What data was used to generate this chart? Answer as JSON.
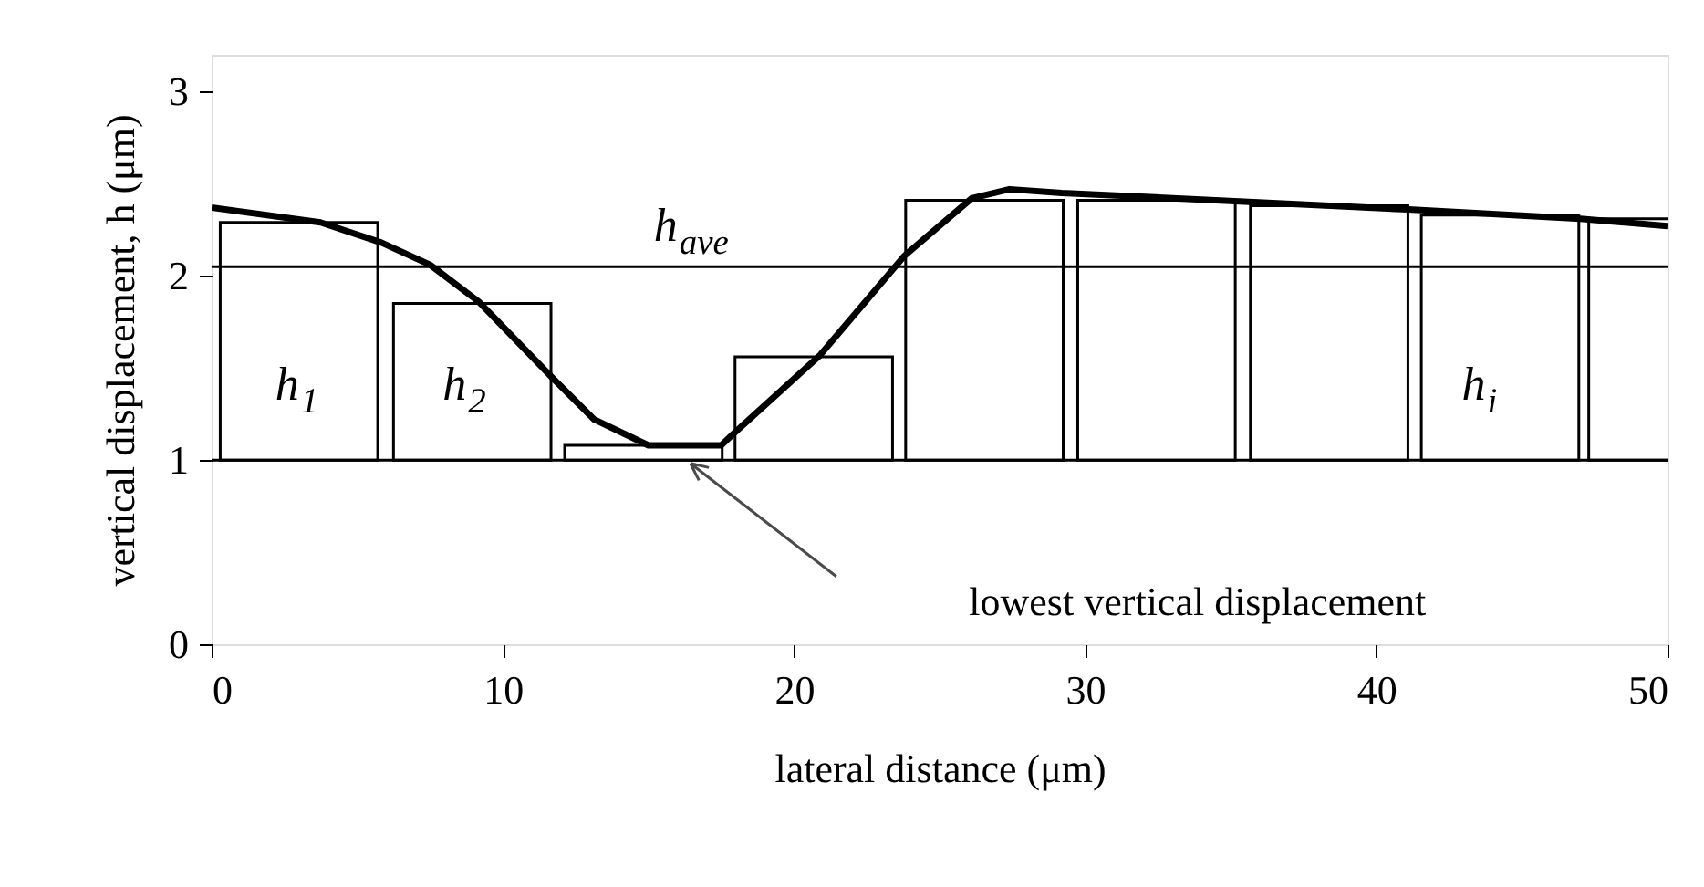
{
  "chart_data": {
    "type": "bar",
    "xlabel": "lateral distance (μm)",
    "ylabel": "vertical displacement, h (μm)",
    "xlim": [
      0,
      50
    ],
    "xticks": [
      0,
      10,
      20,
      30,
      40,
      50
    ],
    "ylim": [
      0,
      3.2
    ],
    "yticks": [
      0,
      1,
      2,
      3
    ],
    "grid": false,
    "series": [
      {
        "type": "bar",
        "color": "#ffffff",
        "x": [
          3.0,
          8.95,
          14.83,
          20.68,
          26.54,
          32.45,
          38.38,
          44.25,
          50.0
        ],
        "base": [
          1,
          1,
          1,
          1,
          1,
          1,
          1,
          1,
          1
        ],
        "values": [
          1.29,
          0.85,
          0.08,
          0.56,
          1.41,
          1.41,
          1.38,
          1.33,
          1.31
        ]
      },
      {
        "type": "line",
        "color": "#000000",
        "x": [
          0,
          3.74,
          5.83,
          7.5,
          9.17,
          11.68,
          13.14,
          15.0,
          17.5,
          17.9,
          20.9,
          23.8,
          26.1,
          27.4,
          29.2,
          41.1,
          47.0,
          50
        ],
        "values": [
          2.37,
          2.29,
          2.18,
          2.06,
          1.86,
          1.45,
          1.22,
          1.08,
          1.08,
          1.14,
          1.57,
          2.11,
          2.42,
          2.47,
          2.45,
          2.36,
          2.31,
          2.27
        ]
      }
    ],
    "ref_lines": [
      {
        "axis": "y",
        "value": 2.05,
        "label": "h$_{ave}$",
        "color": "#000000"
      },
      {
        "axis": "y",
        "value": 1.0,
        "label": null,
        "color": "#000000"
      }
    ],
    "annotations": [
      "h$_{1}$",
      "h$_{2}$",
      "h$_{i}$",
      "lowest vertical displacement"
    ]
  }
}
